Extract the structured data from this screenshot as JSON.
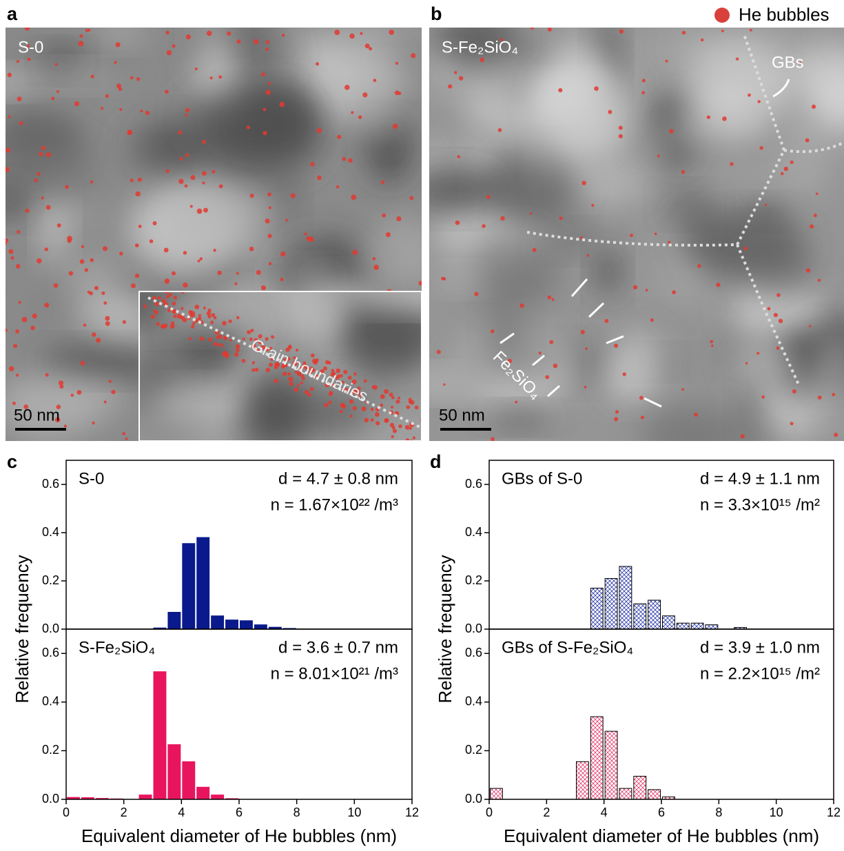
{
  "figure_legend": "He bubbles",
  "images": [
    {
      "panel": "a",
      "label": "S-0",
      "scale_bar": "50 nm",
      "inset_label": "Grain boundaries"
    },
    {
      "panel": "b",
      "label": "S-Fe₂SiO₄",
      "scale_bar": "50 nm",
      "annotations": [
        "GBs",
        "Fe₂SiO₄"
      ]
    }
  ],
  "chart_data": [
    {
      "type": "histogram",
      "panel": "c",
      "label": "S-0",
      "annotations": [
        "d = 4.7 ± 0.8 nm",
        "n = 1.67×10²² /m³"
      ],
      "bins": [
        3,
        3.5,
        4,
        4.5,
        5,
        5.5,
        6,
        6.5,
        7,
        7.5,
        8
      ],
      "values": [
        0.005,
        0.07,
        0.355,
        0.38,
        0.055,
        0.038,
        0.035,
        0.018,
        0.008,
        0.003
      ],
      "color": "#0a1a8c",
      "hatch": false,
      "xlim": [
        0,
        12
      ],
      "ylim": [
        0,
        0.7
      ],
      "yticks": [
        {
          "value": 0,
          "label": "0.0"
        },
        0.2,
        0.4,
        0.6
      ]
    },
    {
      "type": "histogram",
      "label": "S-Fe₂SiO₄",
      "annotations": [
        "d = 3.6 ± 0.7 nm",
        "n = 8.01×10²¹ /m³"
      ],
      "bins": [
        0,
        0.5,
        1,
        1.5,
        2,
        2.5,
        3,
        3.5,
        4,
        4.5,
        5,
        5.5,
        6
      ],
      "values": [
        0.008,
        0.007,
        0.004,
        0.002,
        0,
        0.018,
        0.525,
        0.225,
        0.155,
        0.05,
        0.018,
        0.003
      ],
      "color": "#e8155e",
      "hatch": false,
      "xlim": [
        0,
        12
      ],
      "ylim": [
        0,
        0.7
      ],
      "xticks": [
        0,
        2,
        4,
        6,
        8,
        10,
        12
      ],
      "yticks": [
        {
          "value": 0,
          "label": "0.0"
        },
        0.2,
        0.4,
        0.6
      ],
      "xlabel": "Equivalent diameter of He bubbles (nm)",
      "ylabel": "Relative frequency"
    },
    {
      "type": "histogram",
      "panel": "d",
      "label": "GBs of S-0",
      "annotations": [
        "d = 4.9 ± 1.1 nm",
        "n = 3.3×10¹⁵ /m²"
      ],
      "bins": [
        3.5,
        4,
        4.5,
        5,
        5.5,
        6,
        6.5,
        7,
        7.5,
        8,
        8.5,
        9
      ],
      "values": [
        0.17,
        0.21,
        0.26,
        0.105,
        0.12,
        0.055,
        0.025,
        0.025,
        0.018,
        0,
        0.007
      ],
      "color": "#2a3aa8",
      "hatch": true,
      "xlim": [
        0,
        12
      ],
      "ylim": [
        0,
        0.7
      ],
      "yticks": [
        {
          "value": 0,
          "label": "0.0"
        },
        0.2,
        0.4,
        0.6
      ]
    },
    {
      "type": "histogram",
      "label": "GBs of S-Fe₂SiO₄",
      "annotations": [
        "d = 3.9 ± 1.0 nm",
        "n = 2.2×10¹⁵ /m²"
      ],
      "bins": [
        0,
        0.5,
        1,
        1.5,
        2,
        2.5,
        3,
        3.5,
        4,
        4.5,
        5,
        5.5,
        6,
        6.5
      ],
      "values": [
        0.045,
        0,
        0,
        0,
        0,
        0,
        0.155,
        0.34,
        0.28,
        0.045,
        0.095,
        0.04,
        0.01
      ],
      "color": "#e0406e",
      "hatch": true,
      "xlim": [
        0,
        12
      ],
      "ylim": [
        0,
        0.7
      ],
      "xticks": [
        0,
        2,
        4,
        6,
        8,
        10,
        12
      ],
      "yticks": [
        {
          "value": 0,
          "label": "0.0"
        },
        0.2,
        0.4,
        0.6
      ],
      "xlabel": "Equivalent diameter of He bubbles (nm)",
      "ylabel": "Relative frequency"
    }
  ]
}
